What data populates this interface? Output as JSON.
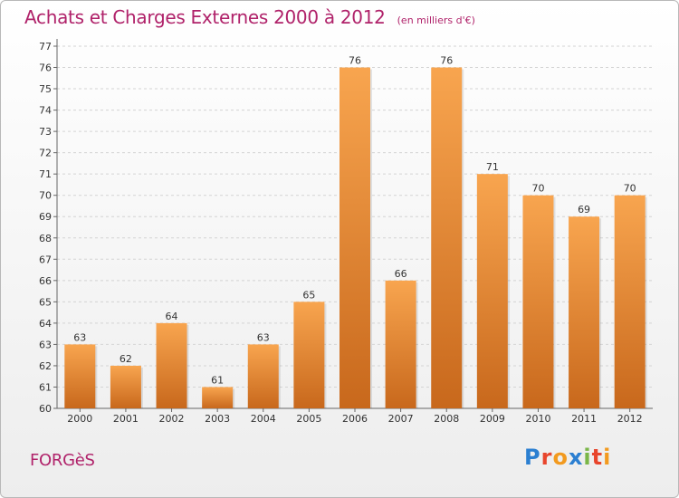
{
  "header": {
    "title": "Achats et Charges Externes 2000 à 2012",
    "subtitle": "(en milliers d'€)"
  },
  "footer": {
    "commune": "FORGèS",
    "logo": {
      "letters": [
        "P",
        "r",
        "o",
        "x",
        "i",
        "t",
        "i"
      ],
      "colors": [
        "#2b7fd1",
        "#e8452c",
        "#f29a1f",
        "#2b7fd1",
        "#7ab648",
        "#e8452c",
        "#f29a1f"
      ]
    }
  },
  "colors": {
    "bar_light": "#f8a54f",
    "bar_dark": "#c8681c",
    "grid": "#d4d4d4",
    "title": "#b0226a"
  },
  "chart_data": {
    "type": "bar",
    "title": "Achats et Charges Externes 2000 à 2012",
    "subtitle": "(en milliers d'€)",
    "categories": [
      "2000",
      "2001",
      "2002",
      "2003",
      "2004",
      "2005",
      "2006",
      "2007",
      "2008",
      "2009",
      "2010",
      "2011",
      "2012"
    ],
    "values": [
      63,
      62,
      64,
      61,
      63,
      65,
      76,
      66,
      76,
      71,
      70,
      69,
      70
    ],
    "ylim": [
      60,
      77
    ],
    "yticks": [
      60,
      61,
      62,
      63,
      64,
      65,
      66,
      67,
      68,
      69,
      70,
      71,
      72,
      73,
      74,
      75,
      76,
      77
    ],
    "grid": true,
    "data_labels": true
  }
}
